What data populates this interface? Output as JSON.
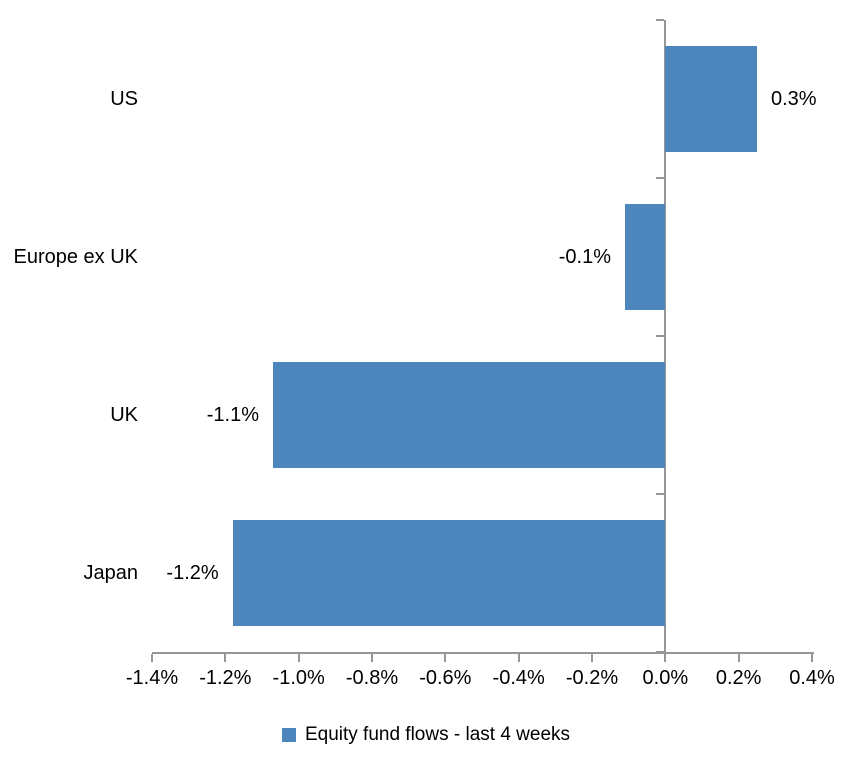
{
  "chart_data": {
    "type": "bar",
    "orientation": "horizontal",
    "title": "",
    "categories": [
      "US",
      "Europe ex UK",
      "UK",
      "Japan"
    ],
    "series": [
      {
        "name": "Equity fund flows - last 4 weeks",
        "values": [
          0.25,
          -0.11,
          -1.07,
          -1.18
        ],
        "labels": [
          "0.3%",
          "-0.1%",
          "-1.1%",
          "-1.2%"
        ]
      }
    ],
    "x_axis": {
      "min": -1.4,
      "max": 0.4,
      "step": 0.2,
      "tick_labels": [
        "-1.4%",
        "-1.2%",
        "-1.0%",
        "-0.8%",
        "-0.6%",
        "-0.4%",
        "-0.2%",
        "0.0%",
        "0.2%",
        "0.4%"
      ]
    },
    "y_axis": {
      "tick_count": 5
    },
    "legend": {
      "label": "Equity fund flows - last 4 weeks",
      "position": "bottom"
    },
    "grid": false,
    "colors": {
      "bar": "#4D86BC",
      "axis": "#969696",
      "text": "#000000",
      "background": "#FFFFFF"
    }
  }
}
